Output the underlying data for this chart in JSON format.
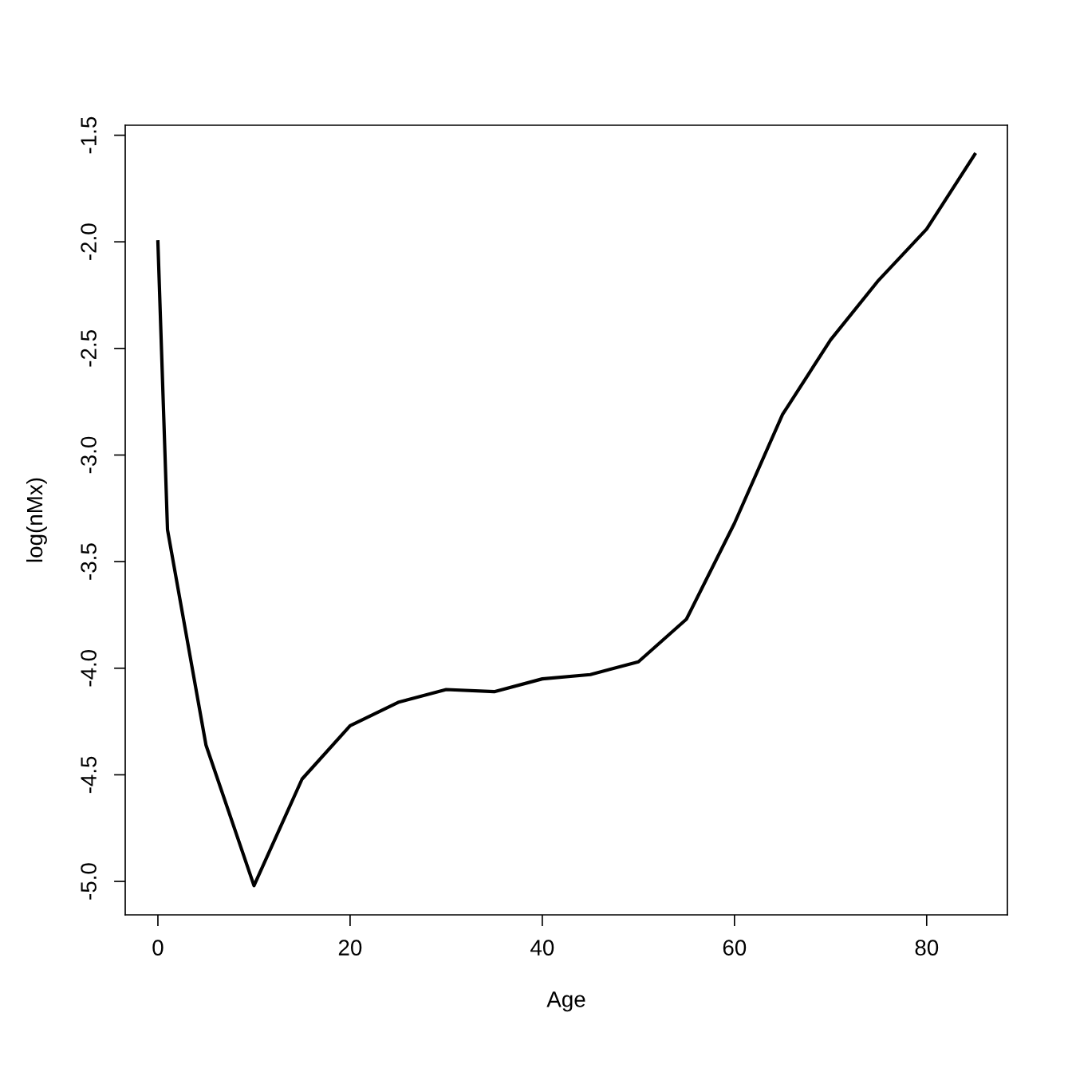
{
  "chart_data": {
    "type": "line",
    "xlabel": "Age",
    "ylabel": "log(nMx)",
    "x": [
      0,
      1,
      5,
      10,
      15,
      20,
      25,
      30,
      35,
      40,
      45,
      50,
      55,
      60,
      65,
      70,
      75,
      80,
      85
    ],
    "series": [
      {
        "color": "#000000",
        "values": [
          -2.0,
          -3.35,
          -4.36,
          -5.02,
          -4.52,
          -4.27,
          -4.16,
          -4.1,
          -4.11,
          -4.05,
          -4.03,
          -3.97,
          -3.77,
          -3.32,
          -2.81,
          -2.46,
          -2.18,
          -1.94,
          -1.59
        ]
      }
    ],
    "xlim": [
      -3.4,
      88.4
    ],
    "ylim": [
      -5.157,
      -1.453
    ],
    "xticks": [
      0,
      20,
      40,
      60,
      80
    ],
    "yticks": [
      {
        "value": -5.0,
        "label": "-5.0"
      },
      {
        "value": -4.5,
        "label": "-4.5"
      },
      {
        "value": -4.0,
        "label": "-4.0"
      },
      {
        "value": -3.5,
        "label": "-3.5"
      },
      {
        "value": -3.0,
        "label": "-3.0"
      },
      {
        "value": -2.5,
        "label": "-2.5"
      },
      {
        "value": -2.0,
        "label": "-2.0"
      },
      {
        "value": -1.5,
        "label": "-1.5"
      }
    ],
    "grid": false,
    "legend": false,
    "marker": "none",
    "line_style": "solid"
  }
}
